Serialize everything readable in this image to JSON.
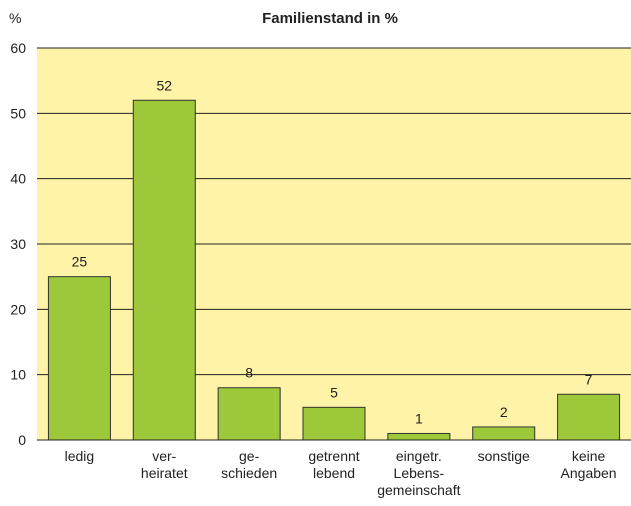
{
  "chart_data": {
    "type": "bar",
    "title": "Familienstand in %",
    "y_label": "%",
    "categories": [
      "ledig",
      "ver-\nheiratet",
      "ge-\nschieden",
      "getrennt\nlebend",
      "eingetr.\nLebens-\ngemeinschaft",
      "sonstige",
      "keine\nAngaben"
    ],
    "values": [
      25,
      52,
      8,
      5,
      1,
      2,
      7
    ],
    "color": "#9cc83a",
    "ylim": [
      0,
      60
    ],
    "yticks": [
      0,
      10,
      20,
      30,
      40,
      50,
      60
    ],
    "grid": true,
    "show_value_labels": true
  }
}
